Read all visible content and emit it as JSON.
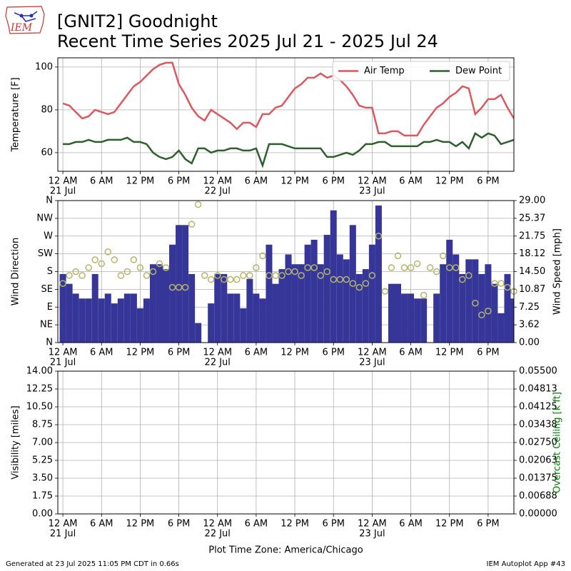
{
  "logo": "IEM",
  "title": "[GNIT2] Goodnight",
  "subtitle": "Recent Time Series 2025 Jul 21 - 2025 Jul 24",
  "footer_left": "Generated at 23 Jul 2025 11:05 PM CDT in 0.66s",
  "footer_right": "IEM Autoplot App #43",
  "chart_data": [
    {
      "type": "line",
      "ylabel": "Temperature [F]",
      "grid": true,
      "legend": "upper right",
      "xlim": [
        "2025-07-20 23:13",
        "2025-07-23 22:00"
      ],
      "xticks": [
        {
          "value": "2025-07-21 00:00",
          "label": "12 AM"
        },
        {
          "value": "2025-07-21 06:00",
          "label": "6 AM"
        },
        {
          "value": "2025-07-21 12:00",
          "label": "12 PM"
        },
        {
          "value": "2025-07-21 18:00",
          "label": "6 PM"
        },
        {
          "value": "2025-07-22 00:00",
          "label": "12 AM"
        },
        {
          "value": "2025-07-22 06:00",
          "label": "6 AM"
        },
        {
          "value": "2025-07-22 12:00",
          "label": "12 PM"
        },
        {
          "value": "2025-07-22 18:00",
          "label": "6 PM"
        },
        {
          "value": "2025-07-23 00:00",
          "label": "12 AM"
        },
        {
          "value": "2025-07-23 06:00",
          "label": "6 AM"
        },
        {
          "value": "2025-07-23 12:00",
          "label": "12 PM"
        },
        {
          "value": "2025-07-23 18:00",
          "label": "6 PM"
        }
      ],
      "xdates": [
        {
          "value": "2025-07-21 00:00",
          "label": "21 Jul"
        },
        {
          "value": "2025-07-22 00:00",
          "label": "22 Jul"
        },
        {
          "value": "2025-07-23 00:00",
          "label": "23 Jul"
        }
      ],
      "ylim": [
        51.3,
        104.3
      ],
      "yticks": [
        60,
        80,
        100
      ],
      "x": [
        "2025-07-21 00:00",
        "2025-07-21 01:00",
        "2025-07-21 02:00",
        "2025-07-21 03:00",
        "2025-07-21 04:00",
        "2025-07-21 05:00",
        "2025-07-21 06:00",
        "2025-07-21 07:00",
        "2025-07-21 08:00",
        "2025-07-21 09:00",
        "2025-07-21 10:00",
        "2025-07-21 11:00",
        "2025-07-21 12:00",
        "2025-07-21 13:00",
        "2025-07-21 14:00",
        "2025-07-21 15:00",
        "2025-07-21 16:00",
        "2025-07-21 17:00",
        "2025-07-21 18:00",
        "2025-07-21 19:00",
        "2025-07-21 20:00",
        "2025-07-21 21:00",
        "2025-07-21 22:00",
        "2025-07-21 23:00",
        "2025-07-22 00:00",
        "2025-07-22 01:00",
        "2025-07-22 02:00",
        "2025-07-22 03:00",
        "2025-07-22 04:00",
        "2025-07-22 05:00",
        "2025-07-22 06:00",
        "2025-07-22 07:00",
        "2025-07-22 08:00",
        "2025-07-22 09:00",
        "2025-07-22 10:00",
        "2025-07-22 11:00",
        "2025-07-22 12:00",
        "2025-07-22 13:00",
        "2025-07-22 14:00",
        "2025-07-22 15:00",
        "2025-07-22 16:00",
        "2025-07-22 17:00",
        "2025-07-22 18:00",
        "2025-07-22 19:00",
        "2025-07-22 20:00",
        "2025-07-22 21:00",
        "2025-07-22 22:00",
        "2025-07-22 23:00",
        "2025-07-23 00:00",
        "2025-07-23 01:00",
        "2025-07-23 02:00",
        "2025-07-23 03:00",
        "2025-07-23 04:00",
        "2025-07-23 05:00",
        "2025-07-23 06:00",
        "2025-07-23 07:00",
        "2025-07-23 08:00",
        "2025-07-23 09:00",
        "2025-07-23 10:00",
        "2025-07-23 11:00",
        "2025-07-23 12:00",
        "2025-07-23 13:00",
        "2025-07-23 14:00",
        "2025-07-23 15:00",
        "2025-07-23 16:00",
        "2025-07-23 17:00",
        "2025-07-23 18:00",
        "2025-07-23 19:00",
        "2025-07-23 20:00",
        "2025-07-23 21:00",
        "2025-07-23 22:00"
      ],
      "series": [
        {
          "name": "Air Temp",
          "type": "line",
          "color": "#d9595f",
          "values": [
            83,
            82,
            79,
            76,
            77,
            80,
            79,
            78,
            79,
            83,
            87,
            91,
            93,
            96,
            99,
            101,
            102,
            102,
            92,
            87,
            81,
            77,
            75,
            80,
            78,
            76,
            74,
            71,
            74,
            74,
            72,
            78,
            78,
            81,
            82,
            86,
            90,
            92,
            95,
            95,
            97,
            95,
            96,
            94,
            91,
            87,
            82,
            81,
            81,
            69,
            69,
            70,
            70,
            68,
            68,
            68,
            73,
            77,
            81,
            83,
            86,
            88,
            91,
            90,
            78,
            81,
            85,
            85,
            87,
            81,
            76
          ]
        },
        {
          "name": "Dew Point",
          "type": "line",
          "color": "#2f5f2f",
          "values": [
            64,
            64,
            65,
            65,
            66,
            65,
            65,
            66,
            66,
            66,
            67,
            65,
            65,
            64,
            60,
            58,
            57,
            58,
            61,
            57,
            55,
            62,
            62,
            60,
            61,
            61,
            62,
            62,
            61,
            61,
            62,
            54,
            64,
            64,
            64,
            63,
            62,
            62,
            62,
            62,
            62,
            58,
            58,
            59,
            60,
            59,
            61,
            64,
            64,
            65,
            65,
            63,
            63,
            63,
            63,
            63,
            65,
            65,
            66,
            65,
            65,
            63,
            65,
            62,
            69,
            67,
            69,
            68,
            64,
            65,
            66
          ]
        }
      ]
    },
    {
      "type": "combo",
      "ylabel": "Wind Direction",
      "y2label": "Wind Speed [mph]",
      "grid": true,
      "xlim": [
        "2025-07-20 23:13",
        "2025-07-23 22:00"
      ],
      "xticks": [
        {
          "value": "2025-07-21 00:00",
          "label": "12 AM"
        },
        {
          "value": "2025-07-21 06:00",
          "label": "6 AM"
        },
        {
          "value": "2025-07-21 12:00",
          "label": "12 PM"
        },
        {
          "value": "2025-07-21 18:00",
          "label": "6 PM"
        },
        {
          "value": "2025-07-22 00:00",
          "label": "12 AM"
        },
        {
          "value": "2025-07-22 06:00",
          "label": "6 AM"
        },
        {
          "value": "2025-07-22 12:00",
          "label": "12 PM"
        },
        {
          "value": "2025-07-22 18:00",
          "label": "6 PM"
        },
        {
          "value": "2025-07-23 00:00",
          "label": "12 AM"
        },
        {
          "value": "2025-07-23 06:00",
          "label": "6 AM"
        },
        {
          "value": "2025-07-23 12:00",
          "label": "12 PM"
        },
        {
          "value": "2025-07-23 18:00",
          "label": "6 PM"
        }
      ],
      "xdates": [
        {
          "value": "2025-07-21 00:00",
          "label": "21 Jul"
        },
        {
          "value": "2025-07-22 00:00",
          "label": "22 Jul"
        },
        {
          "value": "2025-07-23 00:00",
          "label": "23 Jul"
        }
      ],
      "ylim": [
        0,
        360
      ],
      "yticks": [
        {
          "value": 0,
          "label": "N"
        },
        {
          "value": 45,
          "label": "NE"
        },
        {
          "value": 90,
          "label": "E"
        },
        {
          "value": 135,
          "label": "SE"
        },
        {
          "value": 180,
          "label": "S"
        },
        {
          "value": 225,
          "label": "SW"
        },
        {
          "value": 270,
          "label": "W"
        },
        {
          "value": 315,
          "label": "NW"
        },
        {
          "value": 360,
          "label": "N"
        }
      ],
      "y2lim": [
        0,
        29
      ],
      "y2ticks": [
        {
          "value": 0,
          "label": "0.00"
        },
        {
          "value": 3.625,
          "label": "3.62"
        },
        {
          "value": 7.25,
          "label": "7.25"
        },
        {
          "value": 10.875,
          "label": "10.87"
        },
        {
          "value": 14.5,
          "label": "14.50"
        },
        {
          "value": 18.125,
          "label": "18.12"
        },
        {
          "value": 21.75,
          "label": "21.75"
        },
        {
          "value": 25.375,
          "label": "25.37"
        },
        {
          "value": 29,
          "label": "29.00"
        }
      ],
      "x": [
        "2025-07-21 00:00",
        "2025-07-21 01:00",
        "2025-07-21 02:00",
        "2025-07-21 03:00",
        "2025-07-21 04:00",
        "2025-07-21 05:00",
        "2025-07-21 06:00",
        "2025-07-21 07:00",
        "2025-07-21 08:00",
        "2025-07-21 09:00",
        "2025-07-21 10:00",
        "2025-07-21 11:00",
        "2025-07-21 12:00",
        "2025-07-21 13:00",
        "2025-07-21 14:00",
        "2025-07-21 15:00",
        "2025-07-21 16:00",
        "2025-07-21 17:00",
        "2025-07-21 18:00",
        "2025-07-21 19:00",
        "2025-07-21 20:00",
        "2025-07-21 21:00",
        "2025-07-21 22:00",
        "2025-07-21 23:00",
        "2025-07-22 00:00",
        "2025-07-22 01:00",
        "2025-07-22 02:00",
        "2025-07-22 03:00",
        "2025-07-22 04:00",
        "2025-07-22 05:00",
        "2025-07-22 06:00",
        "2025-07-22 07:00",
        "2025-07-22 08:00",
        "2025-07-22 09:00",
        "2025-07-22 10:00",
        "2025-07-22 11:00",
        "2025-07-22 12:00",
        "2025-07-22 13:00",
        "2025-07-22 14:00",
        "2025-07-22 15:00",
        "2025-07-22 16:00",
        "2025-07-22 17:00",
        "2025-07-22 18:00",
        "2025-07-22 19:00",
        "2025-07-22 20:00",
        "2025-07-22 21:00",
        "2025-07-22 22:00",
        "2025-07-22 23:00",
        "2025-07-23 00:00",
        "2025-07-23 01:00",
        "2025-07-23 02:00",
        "2025-07-23 03:00",
        "2025-07-23 04:00",
        "2025-07-23 05:00",
        "2025-07-23 06:00",
        "2025-07-23 07:00",
        "2025-07-23 08:00",
        "2025-07-23 09:00",
        "2025-07-23 10:00",
        "2025-07-23 11:00",
        "2025-07-23 12:00",
        "2025-07-23 13:00",
        "2025-07-23 14:00",
        "2025-07-23 15:00",
        "2025-07-23 16:00",
        "2025-07-23 17:00",
        "2025-07-23 18:00",
        "2025-07-23 19:00",
        "2025-07-23 20:00",
        "2025-07-23 21:00",
        "2025-07-23 22:00"
      ],
      "series": [
        {
          "type": "bar",
          "axis": "y2",
          "color": "#363699",
          "values": [
            14,
            12,
            10,
            9,
            9,
            14,
            9,
            10,
            8,
            9,
            10,
            10,
            7,
            9,
            16,
            16,
            15,
            20,
            24,
            24,
            14,
            4,
            0,
            8,
            14,
            14,
            10,
            10,
            7,
            13,
            10,
            9,
            20,
            12,
            15,
            18,
            16,
            16,
            20,
            21,
            16,
            22,
            27,
            18,
            17,
            24,
            14,
            15,
            20,
            28,
            0,
            12,
            12,
            10,
            10,
            9,
            9,
            0,
            10,
            16,
            21,
            18,
            14,
            17,
            17,
            14,
            16,
            12,
            6,
            14,
            9
          ]
        },
        {
          "type": "scatter",
          "color": "#b4b56c",
          "values": [
            150,
            170,
            180,
            170,
            190,
            210,
            200,
            230,
            210,
            170,
            180,
            210,
            190,
            170,
            180,
            200,
            190,
            140,
            140,
            140,
            300,
            350,
            170,
            160,
            170,
            160,
            160,
            160,
            170,
            170,
            190,
            220,
            170,
            170,
            170,
            180,
            180,
            170,
            190,
            190,
            170,
            180,
            160,
            160,
            160,
            150,
            140,
            150,
            170,
            270,
            130,
            190,
            220,
            190,
            190,
            200,
            120,
            190,
            180,
            220,
            190,
            190,
            160,
            170,
            100,
            70,
            80,
            150,
            150,
            140,
            130
          ]
        }
      ]
    },
    {
      "type": "line",
      "ylabel": "Visibility [miles]",
      "y2label": "Overcast Ceiling [k ft]",
      "y2label_color": "#008000",
      "xlabel": "Plot Time Zone: America/Chicago",
      "grid": true,
      "xlim": [
        "2025-07-20 23:13",
        "2025-07-23 22:00"
      ],
      "xticks": [
        {
          "value": "2025-07-21 00:00",
          "label": "12 AM"
        },
        {
          "value": "2025-07-21 06:00",
          "label": "6 AM"
        },
        {
          "value": "2025-07-21 12:00",
          "label": "12 PM"
        },
        {
          "value": "2025-07-21 18:00",
          "label": "6 PM"
        },
        {
          "value": "2025-07-22 00:00",
          "label": "12 AM"
        },
        {
          "value": "2025-07-22 06:00",
          "label": "6 AM"
        },
        {
          "value": "2025-07-22 12:00",
          "label": "12 PM"
        },
        {
          "value": "2025-07-22 18:00",
          "label": "6 PM"
        },
        {
          "value": "2025-07-23 00:00",
          "label": "12 AM"
        },
        {
          "value": "2025-07-23 06:00",
          "label": "6 AM"
        },
        {
          "value": "2025-07-23 12:00",
          "label": "12 PM"
        },
        {
          "value": "2025-07-23 18:00",
          "label": "6 PM"
        }
      ],
      "xdates": [
        {
          "value": "2025-07-21 00:00",
          "label": "21 Jul"
        },
        {
          "value": "2025-07-22 00:00",
          "label": "22 Jul"
        },
        {
          "value": "2025-07-23 00:00",
          "label": "23 Jul"
        }
      ],
      "ylim": [
        0,
        14
      ],
      "yticks": [
        {
          "value": 0,
          "label": "0.00"
        },
        {
          "value": 1.75,
          "label": "1.75"
        },
        {
          "value": 3.5,
          "label": "3.50"
        },
        {
          "value": 5.25,
          "label": "5.25"
        },
        {
          "value": 7,
          "label": "7.00"
        },
        {
          "value": 8.75,
          "label": "8.75"
        },
        {
          "value": 10.5,
          "label": "10.50"
        },
        {
          "value": 12.25,
          "label": "12.25"
        },
        {
          "value": 14,
          "label": "14.00"
        }
      ],
      "y2lim": [
        0,
        0.055
      ],
      "y2ticks": [
        {
          "value": 0,
          "label": "0.00000"
        },
        {
          "value": 0.006875,
          "label": "0.00688"
        },
        {
          "value": 0.01375,
          "label": "0.01375"
        },
        {
          "value": 0.020625,
          "label": "0.02063"
        },
        {
          "value": 0.0275,
          "label": "0.02750"
        },
        {
          "value": 0.034375,
          "label": "0.03438"
        },
        {
          "value": 0.04125,
          "label": "0.04125"
        },
        {
          "value": 0.048125,
          "label": "0.04813"
        },
        {
          "value": 0.055,
          "label": "0.05500"
        }
      ]
    }
  ]
}
